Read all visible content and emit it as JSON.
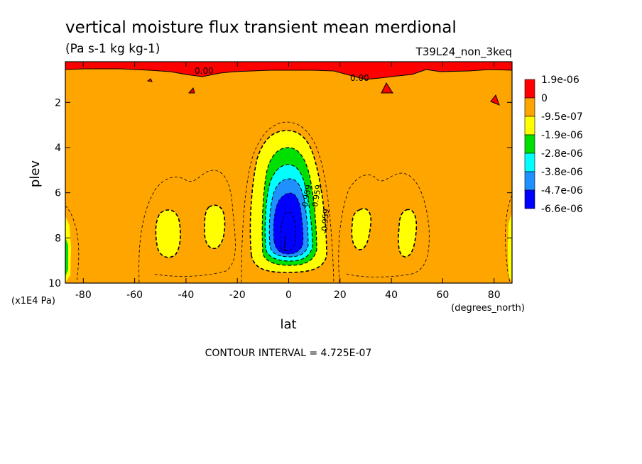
{
  "chart_data": {
    "type": "heatmap",
    "title": "vertical moisture flux transient mean merdional",
    "units": "(Pa s-1 kg kg-1)",
    "run_label": "T39L24_non_3keq",
    "xlabel": "lat",
    "x_units": "(degrees_north)",
    "ylabel": "plev",
    "y_units": "(x1E4 Pa)",
    "xlim": [
      -87,
      87
    ],
    "ylim": [
      10,
      0.2
    ],
    "x_ticks": [
      -80,
      -60,
      -40,
      -20,
      0,
      20,
      40,
      60,
      80
    ],
    "x_tick_labels": [
      "-80",
      "-60",
      "-40",
      "-20",
      "0",
      "20",
      "40",
      "60",
      "80"
    ],
    "y_ticks": [
      2,
      4,
      6,
      8,
      10
    ],
    "y_tick_labels": [
      "2",
      "4",
      "6",
      "8",
      "10"
    ],
    "colorbar": {
      "labels": [
        "1.9e-06",
        "0",
        "-9.5e-07",
        "-1.9e-06",
        "-2.8e-06",
        "-3.8e-06",
        "-4.7e-06",
        "-6.6e-06"
      ],
      "colors": [
        "#ff0000",
        "#ffa500",
        "#ffff00",
        "#00e000",
        "#00ffff",
        "#1e90ff",
        "#0000ff"
      ]
    },
    "contour_labels": [
      "0.00",
      "0.00",
      "-0.959",
      "-0.959",
      "-0.959"
    ],
    "contour_interval_text": "CONTOUR INTERVAL = 4.725E-07"
  }
}
